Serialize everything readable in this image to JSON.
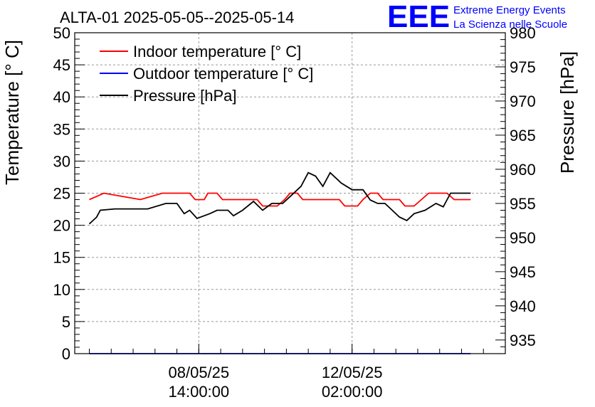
{
  "title": "ALTA-01 2025-05-05--2025-05-14",
  "brand": {
    "logo": "EEE",
    "line1": "Extreme Energy Events",
    "line2": "La Scienza nelle Scuole",
    "color": "#0000ff"
  },
  "chart_data": {
    "type": "line",
    "xlabel": "",
    "ylabel": "Temperature [° C]",
    "y2label": "Pressure [hPa]",
    "ylim": [
      0,
      50
    ],
    "y2lim": [
      933,
      980
    ],
    "x_time_range": [
      "2025-05-05 18:00",
      "2025-05-15 14:00"
    ],
    "grid": true,
    "legend_position": "top-left",
    "yticks": [
      0,
      5,
      10,
      15,
      20,
      25,
      30,
      35,
      40,
      45,
      50
    ],
    "y2ticks": [
      935,
      940,
      945,
      950,
      955,
      960,
      965,
      970,
      975,
      980
    ],
    "xticks": [
      {
        "t": "2025-05-08 14:00",
        "line1": "08/05/25",
        "line2": "14:00:00"
      },
      {
        "t": "2025-05-12 02:00",
        "line1": "12/05/25",
        "line2": "02:00:00"
      }
    ],
    "series": [
      {
        "name": "Indoor temperature [° C]",
        "axis": "left",
        "color": "#ff0000",
        "points": [
          [
            "2025-05-06 02:00",
            24
          ],
          [
            "2025-05-06 10:00",
            25
          ],
          [
            "2025-05-06 20:00",
            24.5
          ],
          [
            "2025-05-07 06:00",
            24
          ],
          [
            "2025-05-07 18:00",
            25
          ],
          [
            "2025-05-08 02:00",
            25
          ],
          [
            "2025-05-08 09:00",
            25
          ],
          [
            "2025-05-08 12:00",
            24
          ],
          [
            "2025-05-08 17:00",
            24
          ],
          [
            "2025-05-08 19:00",
            25
          ],
          [
            "2025-05-09 00:00",
            25
          ],
          [
            "2025-05-09 03:00",
            24
          ],
          [
            "2025-05-09 08:00",
            24
          ],
          [
            "2025-05-09 10:00",
            24
          ],
          [
            "2025-05-09 15:00",
            24
          ],
          [
            "2025-05-09 22:00",
            24
          ],
          [
            "2025-05-10 01:00",
            23
          ],
          [
            "2025-05-10 09:00",
            23
          ],
          [
            "2025-05-10 13:00",
            24
          ],
          [
            "2025-05-10 16:00",
            25
          ],
          [
            "2025-05-10 20:00",
            25
          ],
          [
            "2025-05-10 23:00",
            24
          ],
          [
            "2025-05-11 06:00",
            24
          ],
          [
            "2025-05-11 10:00",
            24
          ],
          [
            "2025-05-11 19:00",
            24
          ],
          [
            "2025-05-11 22:00",
            23
          ],
          [
            "2025-05-12 05:00",
            23
          ],
          [
            "2025-05-12 08:00",
            24
          ],
          [
            "2025-05-12 12:00",
            25
          ],
          [
            "2025-05-12 16:00",
            25
          ],
          [
            "2025-05-12 19:00",
            24
          ],
          [
            "2025-05-13 04:00",
            24
          ],
          [
            "2025-05-13 07:00",
            23
          ],
          [
            "2025-05-13 12:00",
            23
          ],
          [
            "2025-05-13 16:00",
            24
          ],
          [
            "2025-05-13 20:00",
            25
          ],
          [
            "2025-05-14 06:00",
            25
          ],
          [
            "2025-05-14 10:00",
            24
          ],
          [
            "2025-05-14 19:00",
            24
          ]
        ]
      },
      {
        "name": "Outdoor temperature [° C]",
        "axis": "left",
        "color": "#0000ff",
        "points": [
          [
            "2025-05-06 02:00",
            0
          ],
          [
            "2025-05-14 19:00",
            0
          ]
        ]
      },
      {
        "name": "Pressure [hPa]",
        "axis": "right",
        "color": "#000000",
        "points": [
          [
            "2025-05-06 02:00",
            952.0
          ],
          [
            "2025-05-06 06:00",
            953.0
          ],
          [
            "2025-05-06 08:00",
            954.0
          ],
          [
            "2025-05-06 16:00",
            954.2
          ],
          [
            "2025-05-07 10:00",
            954.2
          ],
          [
            "2025-05-07 20:00",
            955.0
          ],
          [
            "2025-05-08 02:00",
            955.0
          ],
          [
            "2025-05-08 06:00",
            953.5
          ],
          [
            "2025-05-08 09:00",
            954.0
          ],
          [
            "2025-05-08 13:00",
            952.8
          ],
          [
            "2025-05-08 20:00",
            953.5
          ],
          [
            "2025-05-09 00:00",
            954.0
          ],
          [
            "2025-05-09 06:00",
            954.0
          ],
          [
            "2025-05-09 09:00",
            953.2
          ],
          [
            "2025-05-09 14:00",
            954.0
          ],
          [
            "2025-05-09 20:00",
            955.3
          ],
          [
            "2025-05-10 01:00",
            954.0
          ],
          [
            "2025-05-10 06:00",
            955.0
          ],
          [
            "2025-05-10 12:00",
            955.0
          ],
          [
            "2025-05-10 16:00",
            956.0
          ],
          [
            "2025-05-10 22:00",
            957.5
          ],
          [
            "2025-05-11 02:00",
            959.5
          ],
          [
            "2025-05-11 06:00",
            959.0
          ],
          [
            "2025-05-11 10:00",
            957.5
          ],
          [
            "2025-05-11 14:00",
            959.5
          ],
          [
            "2025-05-11 20:00",
            958.0
          ],
          [
            "2025-05-12 02:00",
            957.0
          ],
          [
            "2025-05-12 08:00",
            957.0
          ],
          [
            "2025-05-12 12:00",
            955.5
          ],
          [
            "2025-05-12 16:00",
            955.0
          ],
          [
            "2025-05-12 20:00",
            955.0
          ],
          [
            "2025-05-13 00:00",
            954.0
          ],
          [
            "2025-05-13 04:00",
            953.0
          ],
          [
            "2025-05-13 08:00",
            952.5
          ],
          [
            "2025-05-13 12:00",
            953.5
          ],
          [
            "2025-05-13 18:00",
            954.0
          ],
          [
            "2025-05-14 00:00",
            955.0
          ],
          [
            "2025-05-14 04:00",
            954.5
          ],
          [
            "2025-05-14 08:00",
            956.5
          ],
          [
            "2025-05-14 19:00",
            956.5
          ]
        ]
      }
    ]
  }
}
